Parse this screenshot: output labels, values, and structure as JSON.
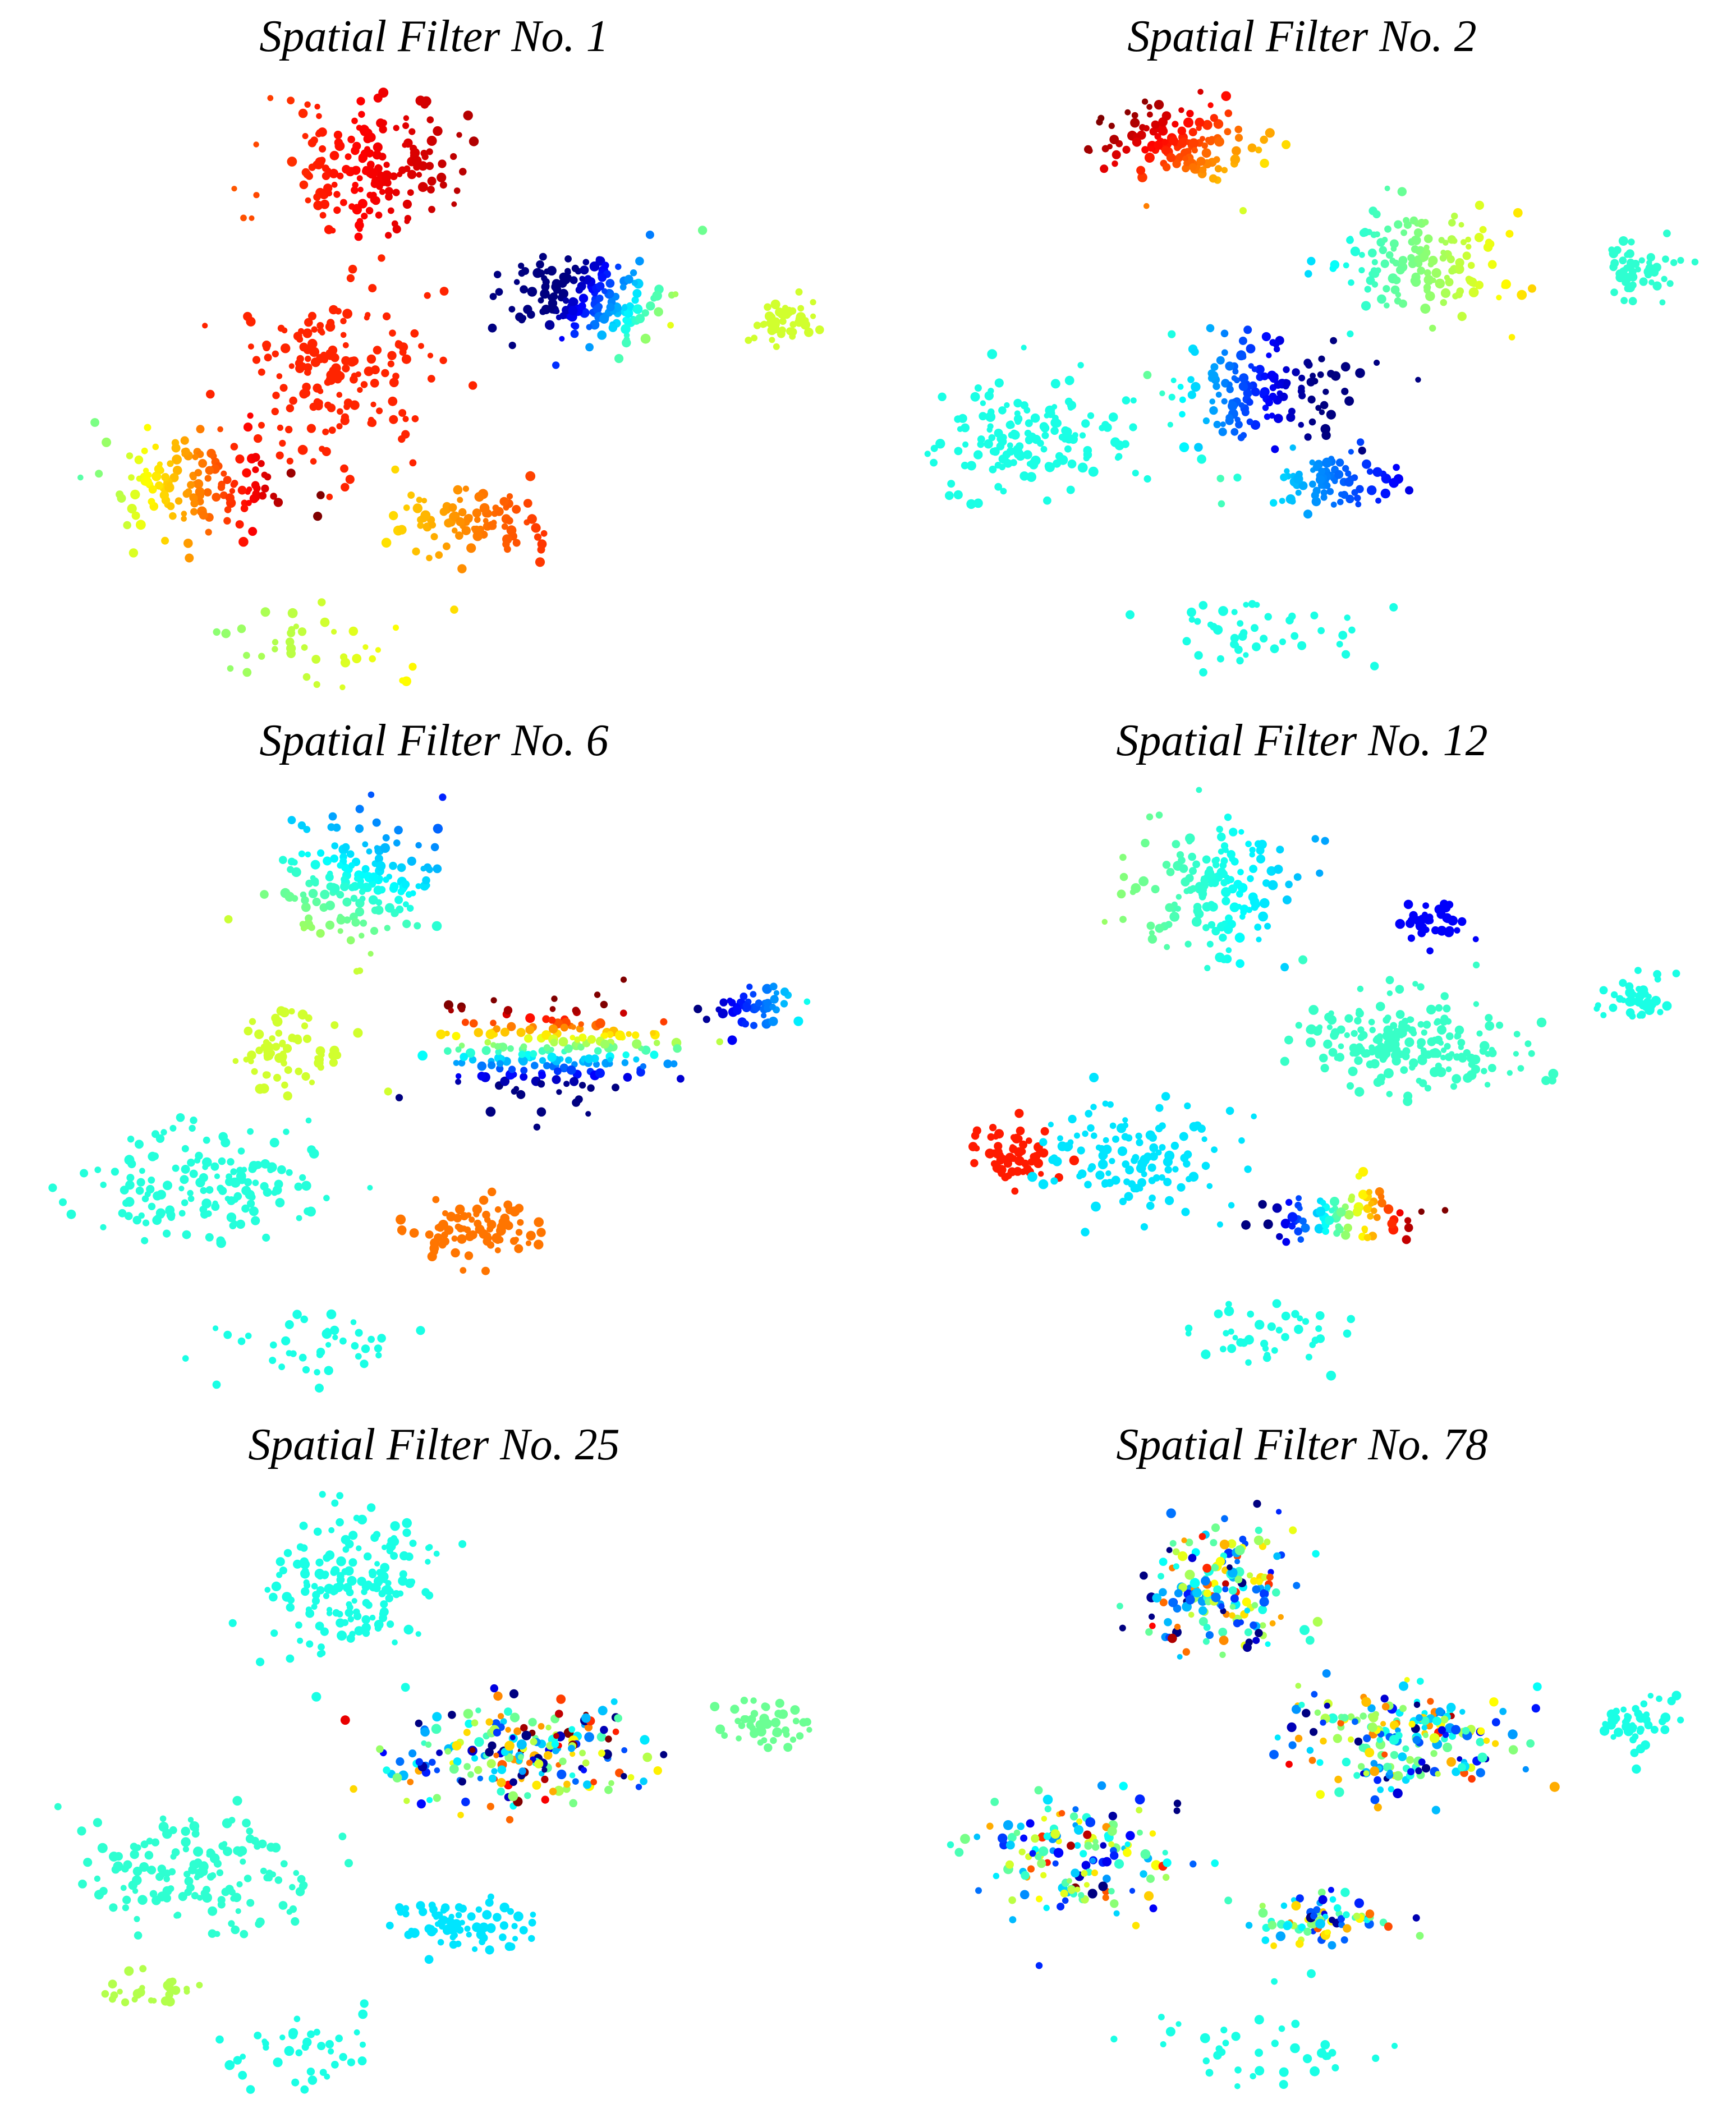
{
  "figure": {
    "panels": [
      {
        "title": "Spatial Filter No. 1"
      },
      {
        "title": "Spatial Filter No. 2"
      },
      {
        "title": "Spatial Filter No. 6"
      },
      {
        "title": "Spatial Filter No. 12"
      },
      {
        "title": "Spatial Filter No. 25"
      },
      {
        "title": "Spatial Filter No. 78"
      }
    ]
  },
  "chart_data": [
    {
      "type": "scatter",
      "title": "Spatial Filter No. 1",
      "colormap": "jet",
      "value_range": [
        0,
        1
      ],
      "clusters": [
        {
          "x": 0.42,
          "y": 0.14,
          "sx": 0.09,
          "sy": 0.1,
          "n": 180,
          "value": 0.88,
          "vx": 0.05,
          "vy": 0
        },
        {
          "x": 0.38,
          "y": 0.48,
          "sx": 0.1,
          "sy": 0.12,
          "n": 160,
          "value": 0.84,
          "vx": 0,
          "vy": 0
        },
        {
          "x": 0.21,
          "y": 0.66,
          "sx": 0.1,
          "sy": 0.08,
          "n": 140,
          "value": 0.74,
          "vx": 0.2,
          "vy": 0
        },
        {
          "x": 0.68,
          "y": 0.36,
          "sx": 0.09,
          "sy": 0.07,
          "n": 170,
          "value": 0.12,
          "vx": 0.35,
          "vy": 0.12
        },
        {
          "x": 0.55,
          "y": 0.72,
          "sx": 0.09,
          "sy": 0.05,
          "n": 90,
          "value": 0.75,
          "vx": 0.08,
          "vy": 0
        },
        {
          "x": 0.92,
          "y": 0.39,
          "sx": 0.04,
          "sy": 0.04,
          "n": 45,
          "value": 0.58,
          "vx": 0,
          "vy": 0
        },
        {
          "x": 0.35,
          "y": 0.93,
          "sx": 0.12,
          "sy": 0.06,
          "n": 40,
          "value": 0.57,
          "vx": 0.06,
          "vy": 0
        }
      ]
    },
    {
      "type": "scatter",
      "title": "Spatial Filter No. 2",
      "colormap": "jet",
      "value_range": [
        0,
        1
      ],
      "clusters": [
        {
          "x": 0.36,
          "y": 0.1,
          "sx": 0.09,
          "sy": 0.06,
          "n": 140,
          "value": 0.82,
          "vx": -0.12,
          "vy": -0.08
        },
        {
          "x": 0.18,
          "y": 0.58,
          "sx": 0.11,
          "sy": 0.08,
          "n": 150,
          "value": 0.4,
          "vx": 0,
          "vy": 0
        },
        {
          "x": 0.45,
          "y": 0.5,
          "sx": 0.12,
          "sy": 0.08,
          "n": 150,
          "value": 0.15,
          "vx": -0.28,
          "vy": 0
        },
        {
          "x": 0.64,
          "y": 0.3,
          "sx": 0.1,
          "sy": 0.08,
          "n": 150,
          "value": 0.5,
          "vx": 0.12,
          "vy": 0
        },
        {
          "x": 0.53,
          "y": 0.65,
          "sx": 0.08,
          "sy": 0.04,
          "n": 80,
          "value": 0.25,
          "vx": -0.12,
          "vy": 0
        },
        {
          "x": 0.91,
          "y": 0.3,
          "sx": 0.04,
          "sy": 0.04,
          "n": 50,
          "value": 0.42,
          "vx": 0,
          "vy": 0
        },
        {
          "x": 0.45,
          "y": 0.9,
          "sx": 0.12,
          "sy": 0.06,
          "n": 45,
          "value": 0.4,
          "vx": 0,
          "vy": 0
        }
      ]
    },
    {
      "type": "scatter",
      "title": "Spatial Filter No. 6",
      "colormap": "jet",
      "value_range": [
        0,
        1
      ],
      "clusters": [
        {
          "x": 0.41,
          "y": 0.16,
          "sx": 0.09,
          "sy": 0.1,
          "n": 160,
          "value": 0.4,
          "vx": -0.06,
          "vy": 0.12
        },
        {
          "x": 0.33,
          "y": 0.43,
          "sx": 0.06,
          "sy": 0.06,
          "n": 70,
          "value": 0.58,
          "vx": 0,
          "vy": 0
        },
        {
          "x": 0.23,
          "y": 0.65,
          "sx": 0.12,
          "sy": 0.08,
          "n": 150,
          "value": 0.41,
          "vx": 0,
          "vy": 0
        },
        {
          "x": 0.64,
          "y": 0.43,
          "sx": 0.13,
          "sy": 0.07,
          "n": 200,
          "value": 0.45,
          "vx": 0,
          "vy": -0.55
        },
        {
          "x": 0.55,
          "y": 0.72,
          "sx": 0.07,
          "sy": 0.04,
          "n": 80,
          "value": 0.76,
          "vx": 0,
          "vy": 0
        },
        {
          "x": 0.89,
          "y": 0.36,
          "sx": 0.05,
          "sy": 0.03,
          "n": 45,
          "value": 0.2,
          "vx": 0.15,
          "vy": 0
        },
        {
          "x": 0.35,
          "y": 0.92,
          "sx": 0.11,
          "sy": 0.06,
          "n": 40,
          "value": 0.4,
          "vx": 0,
          "vy": 0
        }
      ]
    },
    {
      "type": "scatter",
      "title": "Spatial Filter No. 12",
      "colormap": "jet",
      "value_range": [
        0,
        1
      ],
      "clusters": [
        {
          "x": 0.4,
          "y": 0.16,
          "sx": 0.09,
          "sy": 0.1,
          "n": 160,
          "value": 0.4,
          "vx": -0.08,
          "vy": 0
        },
        {
          "x": 0.15,
          "y": 0.6,
          "sx": 0.05,
          "sy": 0.05,
          "n": 60,
          "value": 0.85,
          "vx": 0,
          "vy": 0
        },
        {
          "x": 0.3,
          "y": 0.6,
          "sx": 0.1,
          "sy": 0.1,
          "n": 120,
          "value": 0.35,
          "vx": 0,
          "vy": 0
        },
        {
          "x": 0.63,
          "y": 0.42,
          "sx": 0.12,
          "sy": 0.08,
          "n": 200,
          "value": 0.43,
          "vx": 0,
          "vy": 0
        },
        {
          "x": 0.66,
          "y": 0.22,
          "sx": 0.04,
          "sy": 0.03,
          "n": 35,
          "value": 0.12,
          "vx": 0,
          "vy": 0
        },
        {
          "x": 0.55,
          "y": 0.7,
          "sx": 0.08,
          "sy": 0.04,
          "n": 80,
          "value": 0.5,
          "vx": 0.45,
          "vy": 0
        },
        {
          "x": 0.91,
          "y": 0.35,
          "sx": 0.04,
          "sy": 0.04,
          "n": 45,
          "value": 0.4,
          "vx": 0,
          "vy": 0
        },
        {
          "x": 0.45,
          "y": 0.9,
          "sx": 0.12,
          "sy": 0.06,
          "n": 40,
          "value": 0.4,
          "vx": 0,
          "vy": 0
        }
      ]
    },
    {
      "type": "scatter",
      "title": "Spatial Filter No. 25",
      "colormap": "jet",
      "value_range": [
        0,
        1
      ],
      "clusters": [
        {
          "x": 0.4,
          "y": 0.15,
          "sx": 0.09,
          "sy": 0.1,
          "n": 170,
          "value": 0.4,
          "vx": 0,
          "vy": 0
        },
        {
          "x": 0.22,
          "y": 0.62,
          "sx": 0.12,
          "sy": 0.08,
          "n": 150,
          "value": 0.42,
          "vx": 0,
          "vy": 0
        },
        {
          "x": 0.6,
          "y": 0.43,
          "sx": 0.14,
          "sy": 0.08,
          "n": 210,
          "value": 0.45,
          "vx": 0,
          "vy": 0,
          "noise": 0.32
        },
        {
          "x": 0.53,
          "y": 0.71,
          "sx": 0.07,
          "sy": 0.04,
          "n": 80,
          "value": 0.35,
          "vx": 0,
          "vy": 0
        },
        {
          "x": 0.9,
          "y": 0.38,
          "sx": 0.05,
          "sy": 0.04,
          "n": 45,
          "value": 0.48,
          "vx": 0,
          "vy": 0
        },
        {
          "x": 0.15,
          "y": 0.82,
          "sx": 0.05,
          "sy": 0.03,
          "n": 25,
          "value": 0.55,
          "vx": 0,
          "vy": 0
        },
        {
          "x": 0.35,
          "y": 0.92,
          "sx": 0.11,
          "sy": 0.06,
          "n": 40,
          "value": 0.4,
          "vx": 0,
          "vy": 0
        }
      ]
    },
    {
      "type": "scatter",
      "title": "Spatial Filter No. 78",
      "colormap": "jet",
      "value_range": [
        0,
        1
      ],
      "clusters": [
        {
          "x": 0.4,
          "y": 0.16,
          "sx": 0.09,
          "sy": 0.1,
          "n": 170,
          "value": 0.42,
          "vx": 0,
          "vy": 0,
          "noise": 0.22
        },
        {
          "x": 0.22,
          "y": 0.6,
          "sx": 0.11,
          "sy": 0.09,
          "n": 150,
          "value": 0.42,
          "vx": 0,
          "vy": 0,
          "noise": 0.22
        },
        {
          "x": 0.62,
          "y": 0.4,
          "sx": 0.13,
          "sy": 0.08,
          "n": 200,
          "value": 0.42,
          "vx": 0,
          "vy": 0,
          "noise": 0.22
        },
        {
          "x": 0.53,
          "y": 0.7,
          "sx": 0.07,
          "sy": 0.04,
          "n": 80,
          "value": 0.42,
          "vx": 0,
          "vy": 0,
          "noise": 0.2
        },
        {
          "x": 0.9,
          "y": 0.38,
          "sx": 0.05,
          "sy": 0.04,
          "n": 45,
          "value": 0.4,
          "vx": 0,
          "vy": 0
        },
        {
          "x": 0.45,
          "y": 0.9,
          "sx": 0.12,
          "sy": 0.06,
          "n": 40,
          "value": 0.4,
          "vx": 0,
          "vy": 0
        }
      ]
    }
  ]
}
